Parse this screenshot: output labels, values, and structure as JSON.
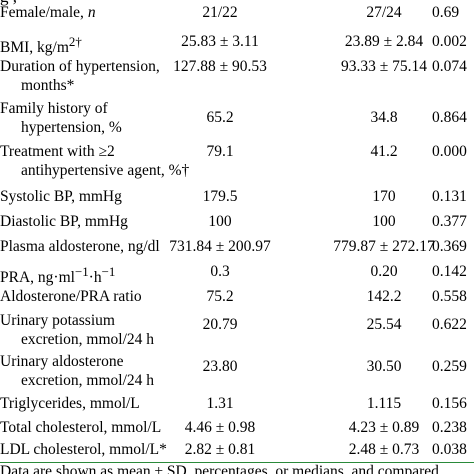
{
  "top_fragment": "g ,",
  "rows": [
    {
      "label": [
        "Female/male, ",
        "n"
      ],
      "label_italic_suffix": true,
      "v1": "21/22",
      "v2": "27/24",
      "p": "0.69"
    },
    {
      "label_html": "BMI, kg/m<sup>2†</sup>",
      "v1": "25.83 ± 3.11",
      "v2": "23.89 ± 2.84",
      "p": "0.002"
    },
    {
      "label_lines": [
        "Duration of hypertension,",
        "months*"
      ],
      "v1": "127.88 ± 90.53",
      "v2": "93.33 ± 75.14",
      "p": "0.074"
    },
    {
      "label_lines": [
        "Family history of",
        "hypertension, %"
      ],
      "v1": "65.2",
      "v2": "34.8",
      "p": "0.864"
    },
    {
      "label_lines": [
        "Treatment with ≥2",
        "antihypertensive agent, %†"
      ],
      "v1": "79.1",
      "v2": "41.2",
      "p": "0.000"
    },
    {
      "label_lines": [
        "Systolic BP, mmHg"
      ],
      "v1": "179.5",
      "v2": "170",
      "p": "0.131"
    },
    {
      "label_lines": [
        "Diastolic BP, mmHg"
      ],
      "v1": "100",
      "v2": "100",
      "p": "0.377"
    },
    {
      "label_lines": [
        "Plasma aldosterone, ng/dl"
      ],
      "v1": "731.84 ± 200.97",
      "v2": "779.87 ± 272.17",
      "p": "0.369"
    },
    {
      "label_html": "PRA, ng·ml<sup>−1</sup>·h<sup>−1</sup>",
      "v1": "0.3",
      "v2": "0.20",
      "p": "0.142"
    },
    {
      "label_lines": [
        "Aldosterone/PRA ratio"
      ],
      "v1": "75.2",
      "v2": "142.2",
      "p": "0.558"
    },
    {
      "label_lines": [
        "Urinary potassium",
        "excretion, mmol/24 h"
      ],
      "v1": "20.79",
      "v2": "25.54",
      "p": "0.622"
    },
    {
      "label_lines": [
        "Urinary aldosterone",
        "excretion, mmol/24 h"
      ],
      "v1": "23.80",
      "v2": "30.50",
      "p": "0.259"
    },
    {
      "label_lines": [
        "Triglycerides, mmol/L"
      ],
      "v1": "1.31",
      "v2": "1.115",
      "p": "0.156"
    },
    {
      "label_lines": [
        "Total cholesterol, mmol/L"
      ],
      "v1": "4.46 ± 0.98",
      "v2": "4.23 ± 0.89",
      "p": "0.238"
    },
    {
      "label_lines": [
        "LDL cholesterol, mmol/L*"
      ],
      "v1": "2.82 ± 0.81",
      "v2": "2.48 ± 0.73",
      "p": "0.038"
    }
  ],
  "footnote": "Data are shown as mean ± SD, percentages, or medians, and compared"
}
